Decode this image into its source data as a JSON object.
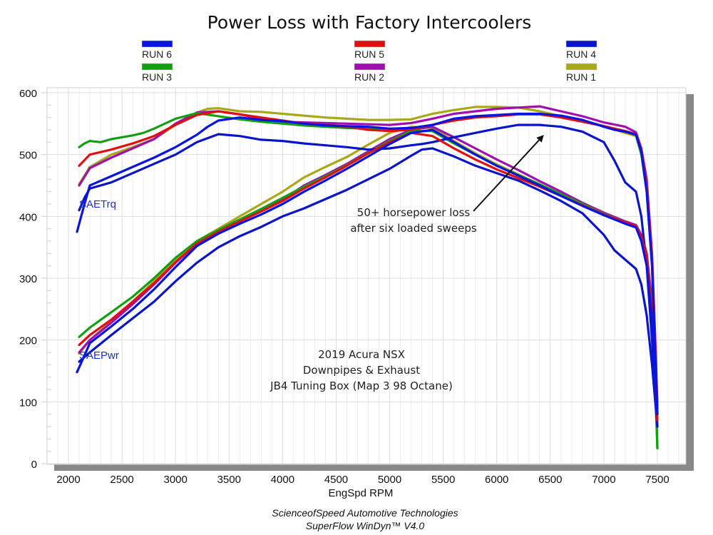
{
  "chart_data": {
    "type": "line",
    "title": "Power Loss with Factory Intercoolers",
    "xlabel": "EngSpd RPM",
    "ylabel": "",
    "xlim": [
      2000,
      7500
    ],
    "ylim": [
      0,
      600
    ],
    "xticks": [
      "2000",
      "2500",
      "3000",
      "3500",
      "4000",
      "4500",
      "5000",
      "5500",
      "6000",
      "6500",
      "7000",
      "7500"
    ],
    "yticks": [
      "0",
      "100",
      "200",
      "300",
      "400",
      "500",
      "600"
    ],
    "grid": true,
    "legend_placement": "top",
    "legend": [
      {
        "name": "RUN 6",
        "color": "#0a14e0"
      },
      {
        "name": "RUN 5",
        "color": "#e01010"
      },
      {
        "name": "RUN 4",
        "color": "#0a14c8"
      },
      {
        "name": "RUN 3",
        "color": "#12a012"
      },
      {
        "name": "RUN 2",
        "color": "#a010b0"
      },
      {
        "name": "RUN 1",
        "color": "#a8a818"
      }
    ],
    "series_labels": {
      "torque": "SAETrq",
      "power": "SAEPwr"
    },
    "series": [
      {
        "name": "RUN 1",
        "metric": "SAETrq",
        "color": "#a8a818",
        "x": [
          2100,
          2200,
          2400,
          2600,
          2800,
          3000,
          3200,
          3300,
          3400,
          3600,
          3800,
          4000,
          4200,
          4400,
          4600,
          4800,
          5000,
          5200,
          5400,
          5600,
          5800,
          6000,
          6200,
          6400,
          6600,
          6800,
          7000,
          7200,
          7300,
          7350,
          7400,
          7450,
          7480,
          7500
        ],
        "y": [
          452,
          480,
          500,
          512,
          525,
          548,
          568,
          574,
          575,
          570,
          569,
          566,
          563,
          560,
          558,
          556,
          556,
          557,
          566,
          572,
          577,
          577,
          576,
          570,
          562,
          555,
          546,
          535,
          530,
          500,
          450,
          330,
          200,
          100
        ]
      },
      {
        "name": "RUN 1",
        "metric": "SAEPwr",
        "color": "#a8a818",
        "x": [
          2100,
          2200,
          2400,
          2600,
          2800,
          3000,
          3200,
          3400,
          3600,
          3800,
          4000,
          4200,
          4400,
          4600,
          4800,
          5000,
          5200,
          5400,
          5600,
          5800,
          6000,
          6200,
          6400,
          6600,
          6800,
          7000,
          7200,
          7300,
          7350,
          7400,
          7450,
          7480,
          7500
        ],
        "y": [
          178,
          200,
          230,
          262,
          295,
          330,
          360,
          380,
          400,
          420,
          440,
          463,
          480,
          496,
          516,
          535,
          545,
          543,
          522,
          502,
          484,
          468,
          452,
          435,
          418,
          403,
          390,
          385,
          370,
          340,
          260,
          160,
          100
        ]
      },
      {
        "name": "RUN 2",
        "metric": "SAETrq",
        "color": "#a010b0",
        "x": [
          2100,
          2200,
          2400,
          2600,
          2800,
          3000,
          3200,
          3400,
          3600,
          3800,
          4000,
          4200,
          4400,
          4600,
          4800,
          5000,
          5200,
          5400,
          5600,
          5800,
          6000,
          6200,
          6400,
          6600,
          6800,
          7000,
          7200,
          7300,
          7350,
          7400,
          7450,
          7480,
          7500
        ],
        "y": [
          450,
          478,
          495,
          510,
          525,
          550,
          568,
          570,
          565,
          558,
          553,
          552,
          551,
          550,
          549,
          548,
          551,
          558,
          566,
          570,
          574,
          576,
          578,
          570,
          562,
          552,
          545,
          536,
          510,
          460,
          340,
          200,
          90
        ]
      },
      {
        "name": "RUN 2",
        "metric": "SAEPwr",
        "color": "#a010b0",
        "x": [
          2100,
          2200,
          2400,
          2600,
          2800,
          3000,
          3200,
          3400,
          3600,
          3800,
          4000,
          4200,
          4400,
          4600,
          4800,
          5000,
          5200,
          5400,
          5600,
          5800,
          6000,
          6200,
          6400,
          6600,
          6800,
          7000,
          7200,
          7300,
          7350,
          7400,
          7450,
          7480,
          7500
        ],
        "y": [
          180,
          200,
          228,
          258,
          290,
          325,
          355,
          375,
          393,
          410,
          427,
          450,
          467,
          485,
          505,
          525,
          540,
          545,
          528,
          510,
          492,
          475,
          457,
          440,
          422,
          406,
          392,
          386,
          370,
          340,
          260,
          160,
          80
        ]
      },
      {
        "name": "RUN 3",
        "metric": "SAETrq",
        "color": "#12a012",
        "x": [
          2100,
          2150,
          2200,
          2300,
          2400,
          2500,
          2600,
          2700,
          2800,
          3000,
          3200,
          3400,
          3600,
          3800,
          4000,
          4200,
          4400,
          4600,
          4800,
          5000,
          5200,
          5400,
          5600,
          5800,
          6000,
          6200,
          6400,
          6600,
          6800,
          7000,
          7200,
          7300,
          7350,
          7400,
          7450,
          7480,
          7500
        ],
        "y": [
          512,
          518,
          522,
          520,
          525,
          528,
          531,
          535,
          542,
          558,
          567,
          562,
          557,
          553,
          550,
          547,
          545,
          543,
          542,
          540,
          540,
          548,
          557,
          560,
          563,
          565,
          565,
          562,
          555,
          546,
          537,
          532,
          500,
          440,
          320,
          150,
          25
        ]
      },
      {
        "name": "RUN 3",
        "metric": "SAEPwr",
        "color": "#12a012",
        "x": [
          2100,
          2200,
          2400,
          2600,
          2800,
          3000,
          3200,
          3400,
          3600,
          3800,
          4000,
          4200,
          4400,
          4600,
          4800,
          5000,
          5200,
          5400,
          5600,
          5800,
          6000,
          6200,
          6400,
          6600,
          6800,
          7000,
          7200,
          7300,
          7350,
          7400,
          7450,
          7480,
          7500
        ],
        "y": [
          205,
          220,
          245,
          270,
          300,
          333,
          360,
          378,
          395,
          412,
          430,
          448,
          465,
          483,
          503,
          522,
          538,
          538,
          518,
          500,
          482,
          467,
          452,
          436,
          420,
          404,
          390,
          383,
          365,
          330,
          240,
          120,
          25
        ]
      },
      {
        "name": "RUN 4",
        "metric": "SAETrq",
        "color": "#0a14c8",
        "x": [
          2100,
          2150,
          2200,
          2400,
          2600,
          2800,
          3000,
          3200,
          3400,
          3600,
          3800,
          4000,
          4200,
          4400,
          4600,
          4800,
          5000,
          5200,
          5300,
          5400,
          5600,
          5800,
          6000,
          6200,
          6400,
          6600,
          6800,
          7000,
          7100,
          7200,
          7300,
          7350,
          7400,
          7450,
          7480,
          7500
        ],
        "y": [
          410,
          430,
          445,
          455,
          470,
          485,
          500,
          520,
          533,
          530,
          524,
          522,
          518,
          515,
          512,
          508,
          510,
          515,
          517,
          520,
          528,
          535,
          542,
          548,
          548,
          545,
          537,
          520,
          490,
          455,
          440,
          400,
          320,
          200,
          120,
          60
        ]
      },
      {
        "name": "RUN 4",
        "metric": "SAEPwr",
        "color": "#0a14c8",
        "x": [
          2100,
          2200,
          2400,
          2600,
          2800,
          3000,
          3200,
          3400,
          3600,
          3800,
          4000,
          4200,
          4400,
          4600,
          4800,
          5000,
          5200,
          5300,
          5400,
          5600,
          5800,
          6000,
          6200,
          6400,
          6600,
          6800,
          7000,
          7100,
          7200,
          7300,
          7350,
          7400,
          7450,
          7480,
          7500
        ],
        "y": [
          165,
          180,
          208,
          235,
          262,
          295,
          325,
          350,
          368,
          383,
          400,
          413,
          428,
          443,
          460,
          477,
          498,
          508,
          510,
          497,
          482,
          470,
          458,
          442,
          425,
          405,
          370,
          345,
          330,
          315,
          290,
          240,
          160,
          100,
          60
        ]
      },
      {
        "name": "RUN 5",
        "metric": "SAETrq",
        "color": "#e01010",
        "x": [
          2100,
          2200,
          2400,
          2600,
          2800,
          3000,
          3200,
          3400,
          3600,
          3800,
          4000,
          4200,
          4400,
          4600,
          4800,
          5000,
          5200,
          5400,
          5600,
          5800,
          6000,
          6200,
          6400,
          6600,
          6800,
          7000,
          7200,
          7300,
          7350,
          7400,
          7450,
          7480,
          7500
        ],
        "y": [
          482,
          500,
          508,
          518,
          530,
          548,
          564,
          570,
          565,
          560,
          555,
          550,
          548,
          545,
          540,
          538,
          540,
          548,
          555,
          560,
          562,
          565,
          565,
          560,
          553,
          546,
          538,
          533,
          505,
          450,
          330,
          180,
          80
        ]
      },
      {
        "name": "RUN 5",
        "metric": "SAEPwr",
        "color": "#e01010",
        "x": [
          2100,
          2200,
          2400,
          2600,
          2800,
          3000,
          3200,
          3400,
          3600,
          3800,
          4000,
          4200,
          4400,
          4600,
          4800,
          5000,
          5200,
          5400,
          5600,
          5800,
          6000,
          6200,
          6400,
          6600,
          6800,
          7000,
          7200,
          7300,
          7350,
          7400,
          7450,
          7480,
          7500
        ],
        "y": [
          192,
          208,
          233,
          262,
          292,
          326,
          356,
          375,
          392,
          408,
          425,
          445,
          463,
          482,
          502,
          520,
          535,
          530,
          510,
          492,
          476,
          462,
          448,
          433,
          418,
          403,
          390,
          384,
          368,
          335,
          250,
          140,
          70
        ]
      },
      {
        "name": "RUN 6",
        "metric": "SAETrq",
        "color": "#0a14e0",
        "x": [
          2080,
          2150,
          2200,
          2400,
          2600,
          2800,
          3000,
          3200,
          3300,
          3400,
          3600,
          3800,
          4000,
          4200,
          4400,
          4600,
          4800,
          5000,
          5200,
          5400,
          5600,
          5800,
          6000,
          6200,
          6400,
          6600,
          6800,
          7000,
          7100,
          7200,
          7300,
          7350,
          7400,
          7450,
          7480,
          7500
        ],
        "y": [
          375,
          420,
          450,
          465,
          480,
          495,
          512,
          532,
          545,
          555,
          560,
          556,
          554,
          550,
          547,
          546,
          545,
          542,
          543,
          548,
          558,
          562,
          564,
          566,
          566,
          563,
          556,
          545,
          540,
          537,
          532,
          505,
          440,
          320,
          180,
          80
        ]
      },
      {
        "name": "RUN 6",
        "metric": "SAEPwr",
        "color": "#0a14e0",
        "x": [
          2080,
          2150,
          2200,
          2400,
          2600,
          2800,
          3000,
          3200,
          3400,
          3600,
          3800,
          4000,
          4200,
          4400,
          4600,
          4800,
          5000,
          5200,
          5400,
          5600,
          5800,
          6000,
          6200,
          6400,
          6600,
          6800,
          7000,
          7200,
          7300,
          7350,
          7400,
          7450,
          7480,
          7500
        ],
        "y": [
          148,
          175,
          195,
          222,
          250,
          282,
          318,
          352,
          372,
          388,
          403,
          420,
          440,
          458,
          477,
          497,
          517,
          535,
          540,
          520,
          500,
          482,
          466,
          450,
          433,
          417,
          402,
          388,
          382,
          360,
          320,
          230,
          140,
          80
        ]
      }
    ],
    "annotations": [
      {
        "text_lines": [
          "50+ horsepower loss",
          "after six loaded sweeps"
        ],
        "arrow_to": {
          "x": 6400,
          "y": 548
        }
      },
      {
        "text_lines": [
          "2019 Acura NSX",
          "Downpipes & Exhaust",
          "JB4 Tuning Box (Map 3 98 Octane)"
        ]
      }
    ],
    "credits": [
      "ScienceofSpeed Automotive Technologies",
      "SuperFlow WinDyn™ V4.0"
    ]
  }
}
